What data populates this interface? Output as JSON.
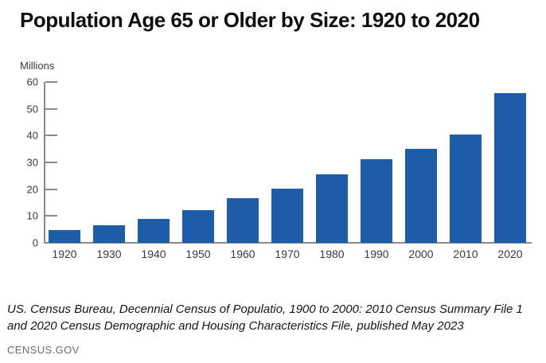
{
  "page": {
    "title": "Population Age 65 or Older by Size: 1920 to 2020",
    "units_label": "Millions",
    "source_note": "US. Census Bureau, Decennial Census of Populatio, 1900 to 2000: 2010 Census Summary File 1 and 2020 Census Demographic and Housing Characteristics File, published May 2023",
    "source_site": "CENSUS.GOV"
  },
  "colors": {
    "bar": "#1d5ca8",
    "axis": "#8a8a8a",
    "tick_text": "#3a3a3a",
    "note_text": "#151515",
    "site_text": "#6d6d6d"
  },
  "chart_data": {
    "type": "bar",
    "title": "Population Age 65 or Older by Size: 1920 to 2020",
    "xlabel": "",
    "ylabel": "Millions",
    "categories": [
      "1920",
      "1930",
      "1940",
      "1950",
      "1960",
      "1970",
      "1980",
      "1990",
      "2000",
      "2010",
      "2020"
    ],
    "values": [
      4.9,
      6.6,
      9.0,
      12.3,
      16.6,
      20.1,
      25.5,
      31.2,
      35.0,
      40.3,
      55.8
    ],
    "yticks": [
      0,
      10,
      20,
      30,
      40,
      50,
      60
    ],
    "ylim": [
      0,
      60
    ],
    "grid": false,
    "legend_position": "none"
  }
}
